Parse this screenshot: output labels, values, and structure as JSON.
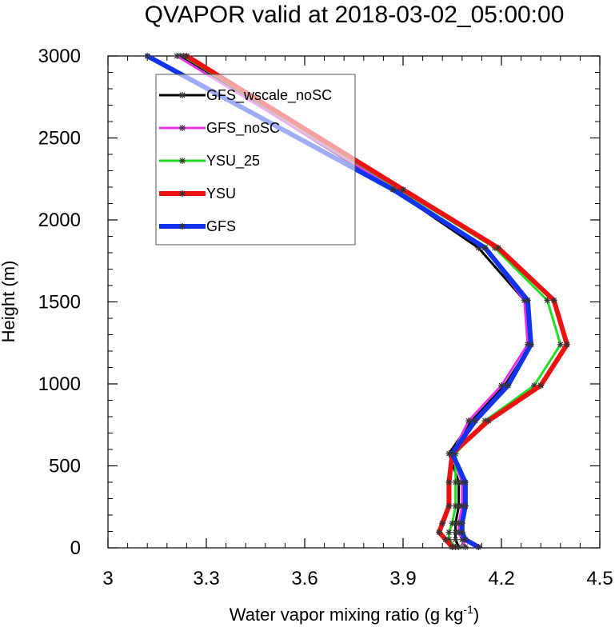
{
  "chart_data": {
    "type": "line",
    "title": "QVAPOR valid at 2018-03-02_05:00:00",
    "xlabel": "Water vapor mixing ratio (g kg",
    "xlabel_superscript": "-1",
    "xlabel_suffix": ")",
    "ylabel": "Height (m)",
    "xlim": [
      3.0,
      4.5
    ],
    "ylim": [
      0,
      3000
    ],
    "x_ticks": [
      3.0,
      3.3,
      3.6,
      3.9,
      4.2,
      4.5
    ],
    "x_tick_labels": [
      "3",
      "3.3",
      "3.6",
      "3.9",
      "4.2",
      "4.5"
    ],
    "y_ticks": [
      0,
      500,
      1000,
      1500,
      2000,
      2500,
      3000
    ],
    "y_tick_labels": [
      "0",
      "500",
      "1000",
      "1500",
      "2000",
      "2500",
      "3000"
    ],
    "grid": false,
    "legend_position": "top-left",
    "series": [
      {
        "name": "GFS_wscale_noSC",
        "color": "#000000",
        "line_width": 3,
        "x": [
          4.07,
          4.06,
          4.06,
          4.06,
          4.07,
          4.07,
          4.04,
          4.11,
          4.21,
          4.29,
          4.27,
          4.13,
          3.87,
          3.22
        ],
        "y": [
          5,
          50,
          95,
          150,
          255,
          400,
          575,
          775,
          990,
          1240,
          1510,
          1830,
          2185,
          3000
        ]
      },
      {
        "name": "GFS_noSC",
        "color": "#e633e6",
        "line_width": 3,
        "x": [
          4.09,
          4.08,
          4.07,
          4.07,
          4.08,
          4.08,
          4.05,
          4.1,
          4.2,
          4.28,
          4.27,
          4.15,
          3.88,
          3.21
        ],
        "y": [
          5,
          50,
          95,
          150,
          255,
          400,
          575,
          775,
          990,
          1240,
          1510,
          1830,
          2185,
          3000
        ]
      },
      {
        "name": "YSU_25",
        "color": "#22dd22",
        "line_width": 3,
        "x": [
          4.06,
          4.04,
          4.04,
          4.05,
          4.06,
          4.06,
          4.06,
          4.15,
          4.3,
          4.38,
          4.34,
          4.18,
          3.89,
          3.23
        ],
        "y": [
          5,
          50,
          95,
          150,
          255,
          400,
          575,
          775,
          990,
          1240,
          1510,
          1830,
          2185,
          3000
        ]
      },
      {
        "name": "YSU",
        "color": "#ee1111",
        "line_width": 6,
        "x": [
          4.05,
          4.03,
          4.01,
          4.02,
          4.04,
          4.04,
          4.05,
          4.16,
          4.32,
          4.4,
          4.36,
          4.19,
          3.9,
          3.24
        ],
        "y": [
          5,
          50,
          95,
          150,
          255,
          400,
          575,
          775,
          990,
          1240,
          1510,
          1830,
          2185,
          3000
        ]
      },
      {
        "name": "GFS",
        "color": "#1133ee",
        "line_width": 6,
        "x": [
          4.13,
          4.09,
          4.08,
          4.08,
          4.09,
          4.09,
          4.05,
          4.12,
          4.22,
          4.29,
          4.28,
          4.15,
          3.87,
          3.12
        ],
        "y": [
          5,
          50,
          95,
          150,
          255,
          400,
          575,
          775,
          990,
          1240,
          1510,
          1830,
          2185,
          3000
        ]
      }
    ]
  }
}
